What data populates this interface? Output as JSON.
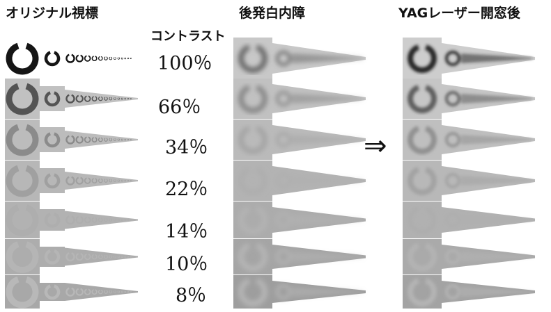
{
  "panels": {
    "original": {
      "title": "オリジナル視標"
    },
    "cataract": {
      "title": "後発白内障"
    },
    "yag": {
      "title": "YAGレーザー開窓後"
    }
  },
  "contrast_header": "コントラスト",
  "contrast_levels": [
    "100％",
    "66％",
    "34％",
    "22％",
    "14％",
    "10％",
    "8％"
  ],
  "contrast_fractions": [
    1.0,
    0.66,
    0.34,
    0.22,
    0.14,
    0.1,
    0.08
  ],
  "arrow": "⇒",
  "colors": {
    "background": "#ffffff",
    "ring_dark": "#1a1a1a",
    "cell_base": "#c4c4c4"
  },
  "icons": {
    "optotype": "landolt-c-ring",
    "blurred_optotype": "blurred-ring-wedge"
  }
}
